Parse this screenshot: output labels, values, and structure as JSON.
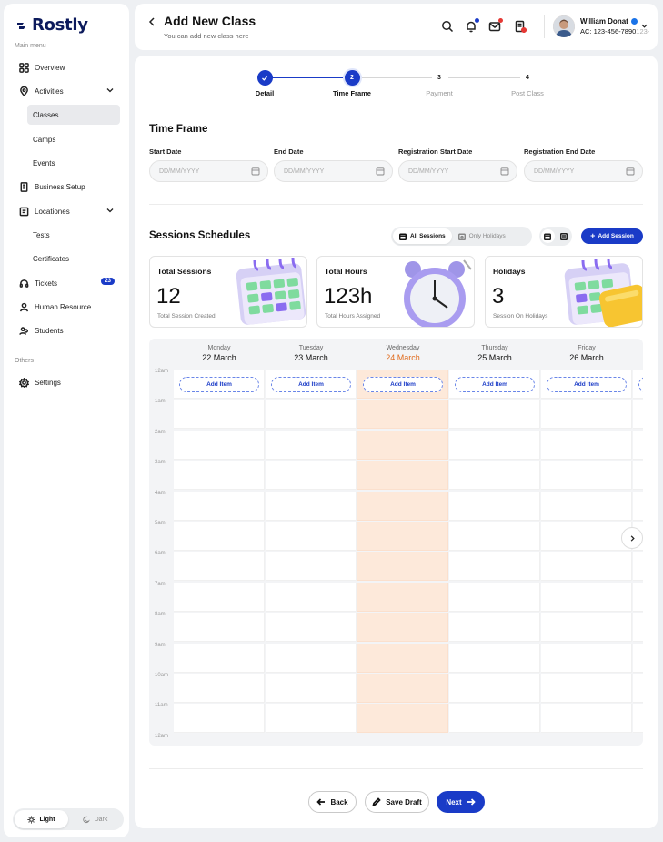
{
  "brand": {
    "name": "Rostly"
  },
  "sidebar": {
    "main_label": "Main menu",
    "others_label": "Others",
    "items": [
      {
        "label": "Overview",
        "icon": "grid-icon"
      },
      {
        "label": "Activities",
        "icon": "location-pin-icon"
      },
      {
        "label": "Classes"
      },
      {
        "label": "Camps"
      },
      {
        "label": "Events"
      },
      {
        "label": "Business Setup",
        "icon": "building-icon"
      },
      {
        "label": "Locationes",
        "icon": "map-board-icon"
      },
      {
        "label": "Tests"
      },
      {
        "label": "Certificates"
      },
      {
        "label": "Tickets",
        "icon": "headset-icon",
        "badge": "23"
      },
      {
        "label": "Human Resource",
        "icon": "person-icon"
      },
      {
        "label": "Students",
        "icon": "people-icon"
      },
      {
        "label": "Settings",
        "icon": "gear-icon"
      }
    ],
    "theme": {
      "light": "Light",
      "dark": "Dark",
      "selected": "Light"
    }
  },
  "header": {
    "title": "Add New Class",
    "subtitle": "You can add new class here",
    "user": {
      "name": "William Donat",
      "account": "AC: 123-456-7890",
      "account_overflow": "123-"
    },
    "colors": {
      "bell_dot": "#1a3bc7",
      "mail_dot": "#e53935"
    }
  },
  "stepper": {
    "steps": [
      {
        "num": "",
        "label": "Detail",
        "state": "done"
      },
      {
        "num": "2",
        "label": "Time Frame",
        "state": "current"
      },
      {
        "num": "3",
        "label": "Payment",
        "state": "todo"
      },
      {
        "num": "4",
        "label": "Post Class",
        "state": "todo"
      }
    ]
  },
  "time_frame": {
    "title": "Time Frame",
    "fields": [
      {
        "label": "Start Date",
        "placeholder": "DD/MM/YYYY"
      },
      {
        "label": "End Date",
        "placeholder": "DD/MM/YYYY"
      },
      {
        "label": "Registration Start Date",
        "placeholder": "DD/MM/YYYY"
      },
      {
        "label": "Registration End Date",
        "placeholder": "DD/MM/YYYY"
      }
    ]
  },
  "sessions": {
    "title": "Sessions Schedules",
    "filter": {
      "all": "All Sessions",
      "holidays": "Only Holidays",
      "selected": "All Sessions"
    },
    "add_button": "Add Session",
    "cards": [
      {
        "title": "Total Sessions",
        "value": "12",
        "caption": "Total Session Created"
      },
      {
        "title": "Total Hours",
        "value": "123h",
        "caption": "Total Hours Assigned"
      },
      {
        "title": "Holidays",
        "value": "3",
        "caption": "Session On Holidays"
      }
    ]
  },
  "calendar": {
    "days": [
      {
        "name": "Monday",
        "date": "22 March",
        "today": false
      },
      {
        "name": "Tuesday",
        "date": "23 March",
        "today": false
      },
      {
        "name": "Wednesday",
        "date": "24 March",
        "today": true
      },
      {
        "name": "Thursday",
        "date": "25 March",
        "today": false
      },
      {
        "name": "Friday",
        "date": "26 March",
        "today": false
      }
    ],
    "add_item_label": "Add Item",
    "times": [
      "12am",
      "1am",
      "2am",
      "3am",
      "4am",
      "5am",
      "6am",
      "7am",
      "8am",
      "9am",
      "10am",
      "11am",
      "12am"
    ],
    "today_color": "#fde9da"
  },
  "footer": {
    "back": "Back",
    "save_draft": "Save Draft",
    "next": "Next"
  },
  "accent": "#1a3bc7"
}
